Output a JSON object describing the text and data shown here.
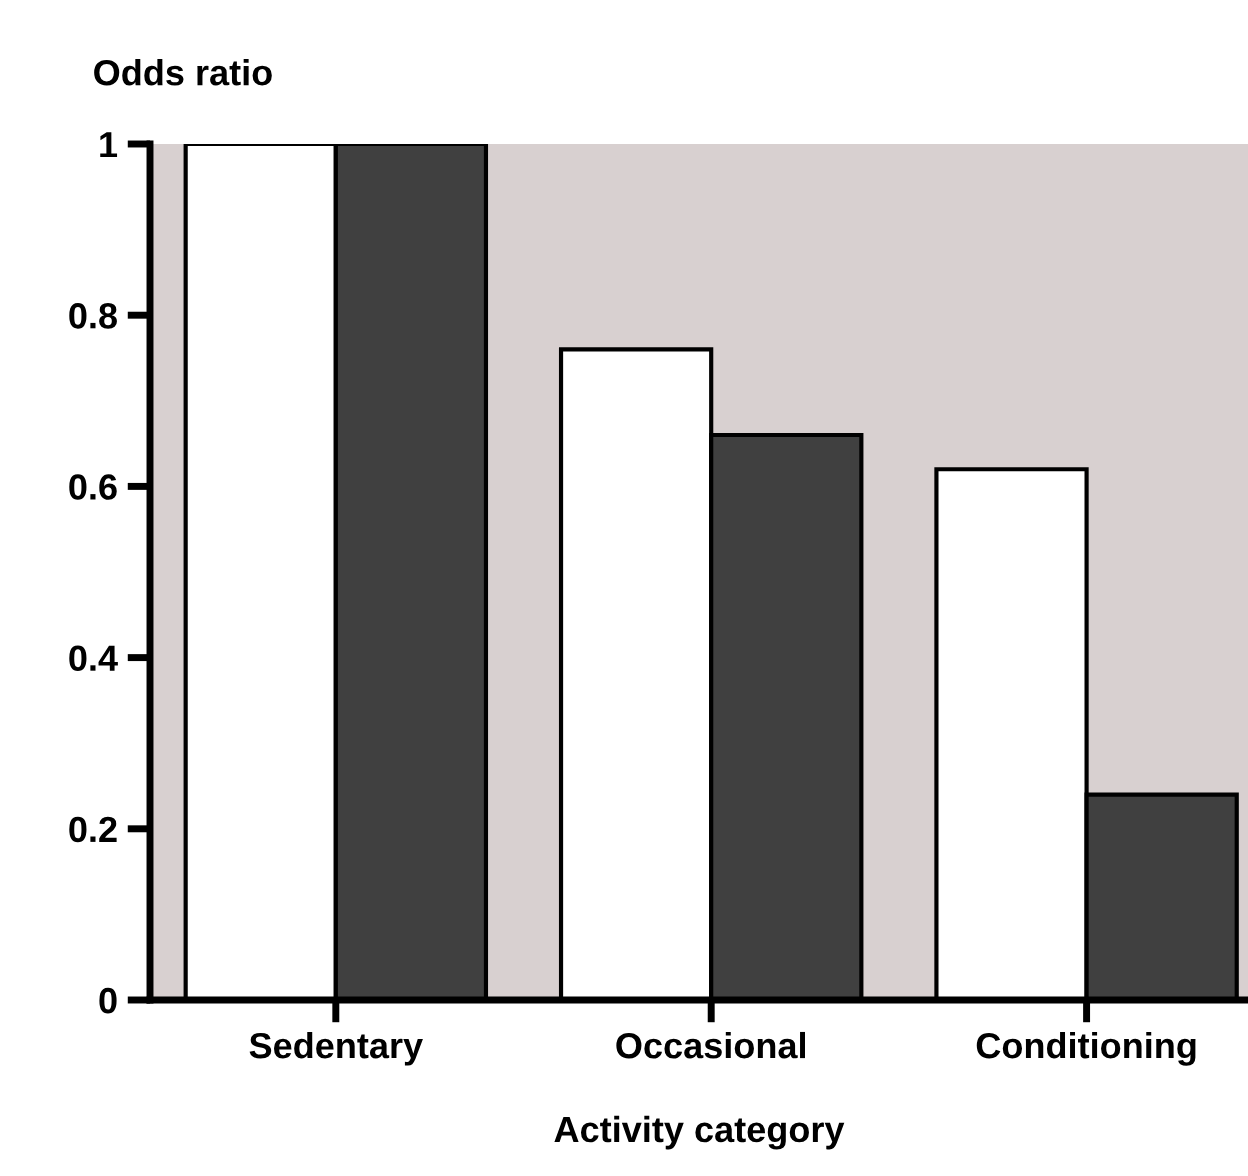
{
  "chart_data": {
    "type": "bar",
    "ylabel": "Odds ratio",
    "xlabel": "Activity category",
    "categories": [
      "Sedentary",
      "Occasional",
      "Conditioning"
    ],
    "series": [
      {
        "color": "#ffffff",
        "values": [
          1,
          0.76,
          0.62
        ]
      },
      {
        "color": "#404040",
        "values": [
          1,
          0.66,
          0.24
        ]
      }
    ],
    "ylim": [
      0,
      1
    ],
    "yticks": [
      0,
      0.2,
      0.4,
      0.6,
      0.8,
      1
    ],
    "grid": false,
    "legend": false
  }
}
